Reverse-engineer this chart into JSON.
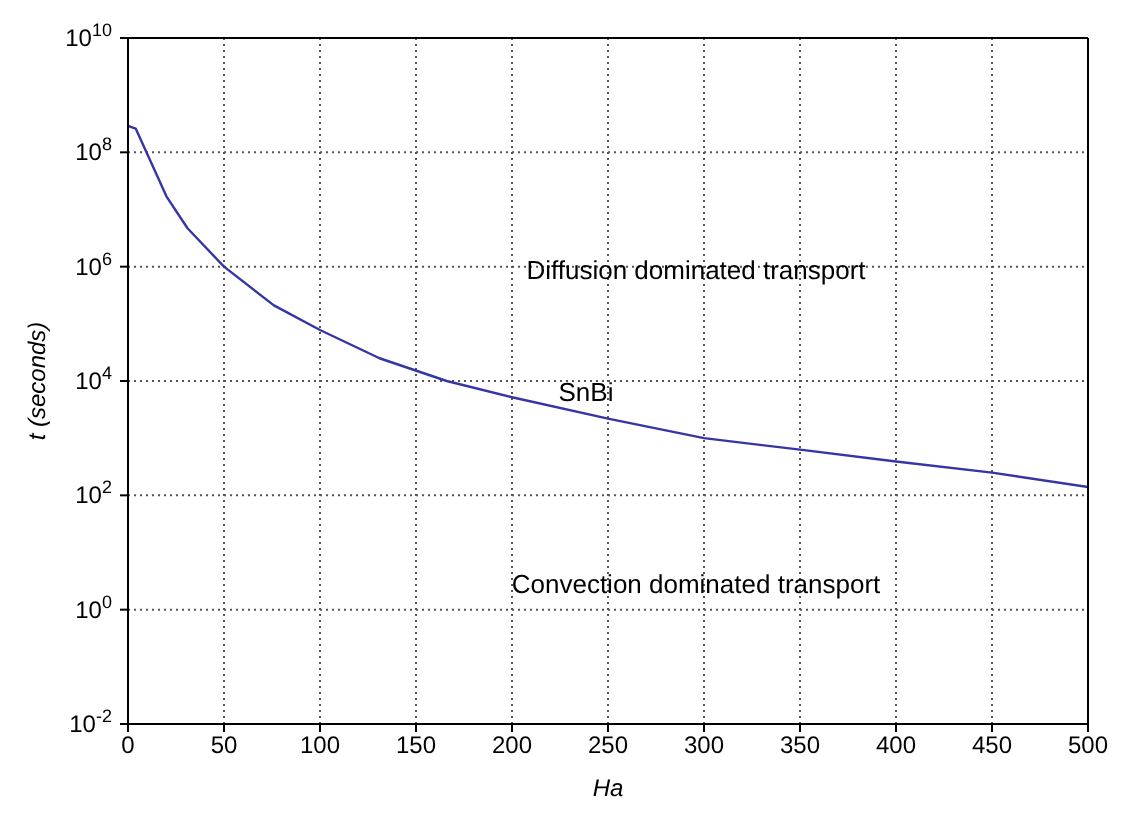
{
  "chart_data": {
    "type": "line",
    "xlabel": "Ha",
    "ylabel": "t (seconds)",
    "log": "y",
    "grid": true,
    "marker": "none",
    "line_style": "solid",
    "xlim": [
      0,
      500
    ],
    "xticks": [
      0,
      50,
      100,
      150,
      200,
      250,
      300,
      350,
      400,
      450,
      500
    ],
    "ylim": [
      0.01,
      10000000000
    ],
    "yticks": [
      {
        "value": 0.01,
        "label": "10$^{-2}$"
      },
      {
        "value": 1,
        "label": "10$^{0}$"
      },
      {
        "value": 100,
        "label": "10$^{2}$"
      },
      {
        "value": 10000,
        "label": "10$^{4}$"
      },
      {
        "value": 1000000,
        "label": "10$^{6}$"
      },
      {
        "value": 100000000,
        "label": "10$^{8}$"
      },
      {
        "value": 10000000000,
        "label": "10$^{10}$"
      }
    ],
    "x": [
      0,
      4,
      15,
      20,
      31,
      50,
      76,
      100,
      131,
      166,
      200,
      250,
      300,
      350,
      400,
      450,
      500
    ],
    "series": [
      {
        "color": "#3535a5",
        "values": [
          290000000,
          260000000,
          40000000,
          17000000,
          4700000,
          1000000,
          210000,
          78000,
          25000,
          10000,
          5200,
          2200,
          1000,
          630,
          390,
          250,
          140
        ]
      }
    ],
    "annotations": [
      "Diffusion dominated transport",
      "SnBi",
      "Convection dominated transport"
    ]
  }
}
